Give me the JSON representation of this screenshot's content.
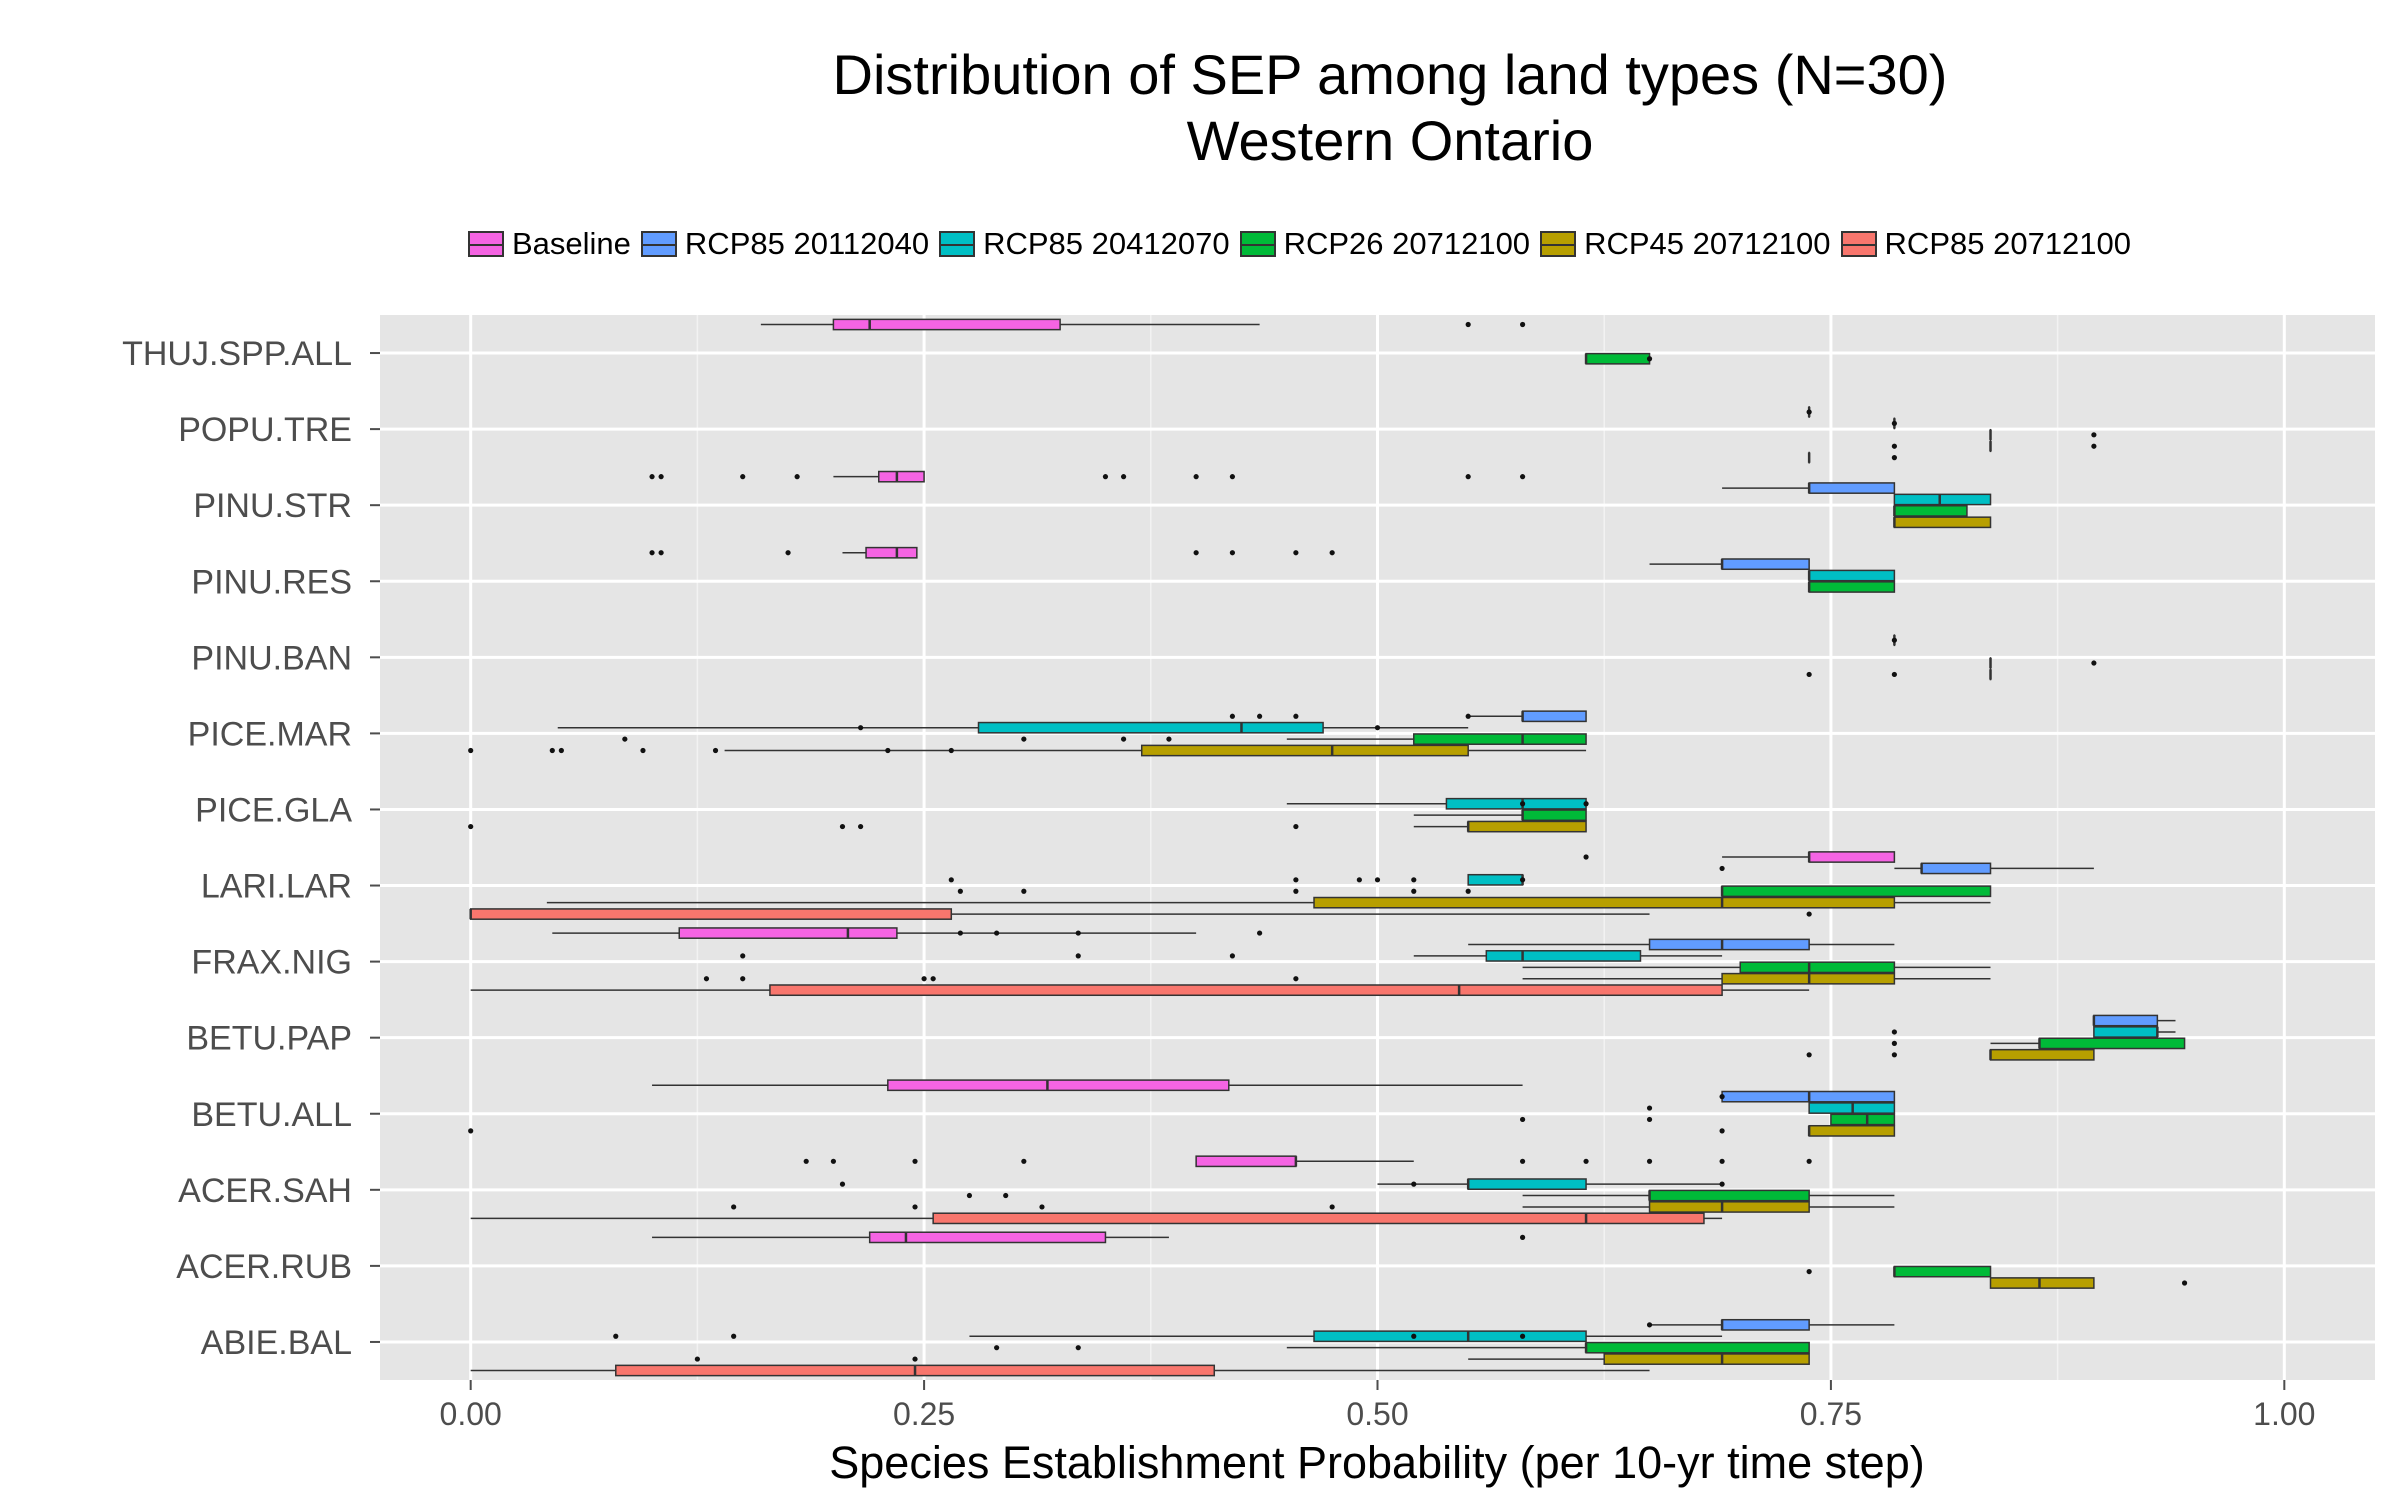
{
  "chart_data": {
    "type": "boxplot",
    "title": "Distribution of SEP among land types (N=30)",
    "subtitle": "Western Ontario",
    "xlabel": "Species Establishment Probability (per 10-yr time step)",
    "xlim": [
      -0.05,
      1.05
    ],
    "xticks": [
      0.0,
      0.25,
      0.5,
      0.75,
      1.0
    ],
    "xtick_labels": [
      "0.00",
      "0.25",
      "0.50",
      "0.75",
      "1.00"
    ],
    "grid": true,
    "legend_position": "top",
    "categories": [
      "THUJ.SPP.ALL",
      "POPU.TRE",
      "PINU.STR",
      "PINU.RES",
      "PINU.BAN",
      "PICE.MAR",
      "PICE.GLA",
      "LARI.LAR",
      "FRAX.NIG",
      "BETU.PAP",
      "BETU.ALL",
      "ACER.SAH",
      "ACER.RUB",
      "ABIE.BAL"
    ],
    "series": [
      {
        "name": "Baseline",
        "color": "#F564E3"
      },
      {
        "name": "RCP85 20112040",
        "color": "#619CFF"
      },
      {
        "name": "RCP85 20412070",
        "color": "#00BFC4"
      },
      {
        "name": "RCP26 20712100",
        "color": "#00BA38"
      },
      {
        "name": "RCP45 20712100",
        "color": "#B79F00"
      },
      {
        "name": "RCP85 20712100",
        "color": "#F8766D"
      }
    ],
    "boxes": [
      {
        "category": "THUJ.SPP.ALL",
        "series": 0,
        "whisker_low": 0.16,
        "q1": 0.2,
        "median": 0.22,
        "q3": 0.325,
        "whisker_high": 0.435,
        "outliers": [
          0.55,
          0.58
        ]
      },
      {
        "category": "THUJ.SPP.ALL",
        "series": 3,
        "whisker_low": 0.615,
        "q1": 0.615,
        "median": 0.615,
        "q3": 0.65,
        "whisker_high": 0.65,
        "outliers": [
          0.65
        ]
      },
      {
        "category": "POPU.TRE",
        "series": 1,
        "whisker_low": 0.738,
        "q1": 0.738,
        "median": 0.738,
        "q3": 0.738,
        "whisker_high": 0.738,
        "outliers": [
          0.738
        ]
      },
      {
        "category": "POPU.TRE",
        "series": 2,
        "whisker_low": 0.785,
        "q1": 0.785,
        "median": 0.785,
        "q3": 0.785,
        "whisker_high": 0.785,
        "outliers": [
          0.785
        ]
      },
      {
        "category": "POPU.TRE",
        "series": 3,
        "whisker_low": 0.838,
        "q1": 0.838,
        "median": 0.838,
        "q3": 0.838,
        "whisker_high": 0.838,
        "outliers": [
          0.895
        ]
      },
      {
        "category": "POPU.TRE",
        "series": 4,
        "whisker_low": 0.838,
        "q1": 0.838,
        "median": 0.838,
        "q3": 0.838,
        "whisker_high": 0.838,
        "outliers": [
          0.785,
          0.895
        ]
      },
      {
        "category": "POPU.TRE",
        "series": 5,
        "whisker_low": 0.738,
        "q1": 0.738,
        "median": 0.738,
        "q3": 0.738,
        "whisker_high": 0.738,
        "outliers": [
          0.785
        ]
      },
      {
        "category": "PINU.STR",
        "series": 0,
        "whisker_low": 0.2,
        "q1": 0.225,
        "median": 0.235,
        "q3": 0.25,
        "whisker_high": 0.25,
        "outliers": [
          0.1,
          0.105,
          0.15,
          0.18,
          0.35,
          0.36,
          0.4,
          0.42,
          0.55,
          0.58
        ]
      },
      {
        "category": "PINU.STR",
        "series": 1,
        "whisker_low": 0.69,
        "q1": 0.738,
        "median": 0.738,
        "q3": 0.785,
        "whisker_high": 0.785,
        "outliers": []
      },
      {
        "category": "PINU.STR",
        "series": 2,
        "whisker_low": 0.785,
        "q1": 0.785,
        "median": 0.81,
        "q3": 0.838,
        "whisker_high": 0.838,
        "outliers": []
      },
      {
        "category": "PINU.STR",
        "series": 3,
        "whisker_low": 0.785,
        "q1": 0.785,
        "median": 0.785,
        "q3": 0.825,
        "whisker_high": 0.825,
        "outliers": []
      },
      {
        "category": "PINU.STR",
        "series": 4,
        "whisker_low": 0.785,
        "q1": 0.785,
        "median": 0.785,
        "q3": 0.838,
        "whisker_high": 0.838,
        "outliers": []
      },
      {
        "category": "PINU.RES",
        "series": 0,
        "whisker_low": 0.205,
        "q1": 0.218,
        "median": 0.235,
        "q3": 0.246,
        "whisker_high": 0.246,
        "outliers": [
          0.1,
          0.105,
          0.175,
          0.4,
          0.42,
          0.455,
          0.475
        ]
      },
      {
        "category": "PINU.RES",
        "series": 1,
        "whisker_low": 0.65,
        "q1": 0.69,
        "median": 0.69,
        "q3": 0.738,
        "whisker_high": 0.738,
        "outliers": []
      },
      {
        "category": "PINU.RES",
        "series": 2,
        "whisker_low": 0.738,
        "q1": 0.738,
        "median": 0.738,
        "q3": 0.785,
        "whisker_high": 0.785,
        "outliers": []
      },
      {
        "category": "PINU.RES",
        "series": 3,
        "whisker_low": 0.738,
        "q1": 0.738,
        "median": 0.738,
        "q3": 0.785,
        "whisker_high": 0.785,
        "outliers": []
      },
      {
        "category": "PINU.BAN",
        "series": 1,
        "whisker_low": 0.785,
        "q1": 0.785,
        "median": 0.785,
        "q3": 0.785,
        "whisker_high": 0.785,
        "outliers": [
          0.785
        ]
      },
      {
        "category": "PINU.BAN",
        "series": 3,
        "whisker_low": 0.838,
        "q1": 0.838,
        "median": 0.838,
        "q3": 0.838,
        "whisker_high": 0.838,
        "outliers": [
          0.895
        ]
      },
      {
        "category": "PINU.BAN",
        "series": 4,
        "whisker_low": 0.838,
        "q1": 0.838,
        "median": 0.838,
        "q3": 0.838,
        "whisker_high": 0.838,
        "outliers": [
          0.738,
          0.785
        ]
      },
      {
        "category": "PICE.MAR",
        "series": 1,
        "whisker_low": 0.55,
        "q1": 0.58,
        "median": 0.58,
        "q3": 0.615,
        "whisker_high": 0.615,
        "outliers": [
          0.42,
          0.435,
          0.455,
          0.55
        ]
      },
      {
        "category": "PICE.MAR",
        "series": 2,
        "whisker_low": 0.048,
        "q1": 0.28,
        "median": 0.425,
        "q3": 0.47,
        "whisker_high": 0.55,
        "outliers": [
          0.215,
          0.5
        ]
      },
      {
        "category": "PICE.MAR",
        "series": 3,
        "whisker_low": 0.45,
        "q1": 0.52,
        "median": 0.58,
        "q3": 0.615,
        "whisker_high": 0.615,
        "outliers": [
          0.085,
          0.305,
          0.36,
          0.385
        ]
      },
      {
        "category": "PICE.MAR",
        "series": 4,
        "whisker_low": 0.14,
        "q1": 0.37,
        "median": 0.475,
        "q3": 0.55,
        "whisker_high": 0.615,
        "outliers": [
          0.0,
          0.045,
          0.05,
          0.095,
          0.135,
          0.23,
          0.265
        ]
      },
      {
        "category": "PICE.GLA",
        "series": 2,
        "whisker_low": 0.45,
        "q1": 0.538,
        "median": 0.58,
        "q3": 0.615,
        "whisker_high": 0.615,
        "outliers": [
          0.58,
          0.615
        ]
      },
      {
        "category": "PICE.GLA",
        "series": 3,
        "whisker_low": 0.52,
        "q1": 0.58,
        "median": 0.58,
        "q3": 0.615,
        "whisker_high": 0.615,
        "outliers": []
      },
      {
        "category": "PICE.GLA",
        "series": 4,
        "whisker_low": 0.52,
        "q1": 0.55,
        "median": 0.55,
        "q3": 0.615,
        "whisker_high": 0.615,
        "outliers": [
          0.0,
          0.205,
          0.215,
          0.455
        ]
      },
      {
        "category": "LARI.LAR",
        "series": 0,
        "whisker_low": 0.69,
        "q1": 0.738,
        "median": 0.738,
        "q3": 0.785,
        "whisker_high": 0.785,
        "outliers": [
          0.615
        ]
      },
      {
        "category": "LARI.LAR",
        "series": 1,
        "whisker_low": 0.785,
        "q1": 0.8,
        "median": 0.8,
        "q3": 0.838,
        "whisker_high": 0.895,
        "outliers": [
          0.69
        ]
      },
      {
        "category": "LARI.LAR",
        "series": 2,
        "whisker_low": 0.55,
        "q1": 0.55,
        "median": 0.58,
        "q3": 0.58,
        "whisker_high": 0.58,
        "outliers": [
          0.265,
          0.455,
          0.49,
          0.5,
          0.52,
          0.58
        ]
      },
      {
        "category": "LARI.LAR",
        "series": 3,
        "whisker_low": 0.69,
        "q1": 0.69,
        "median": 0.69,
        "q3": 0.838,
        "whisker_high": 0.838,
        "outliers": [
          0.27,
          0.305,
          0.455,
          0.52,
          0.55
        ]
      },
      {
        "category": "LARI.LAR",
        "series": 4,
        "whisker_low": 0.042,
        "q1": 0.465,
        "median": 0.69,
        "q3": 0.785,
        "whisker_high": 0.838,
        "outliers": []
      },
      {
        "category": "LARI.LAR",
        "series": 5,
        "whisker_low": 0.0,
        "q1": 0.0,
        "median": 0.0,
        "q3": 0.265,
        "whisker_high": 0.65,
        "outliers": [
          0.738
        ]
      },
      {
        "category": "FRAX.NIG",
        "series": 0,
        "whisker_low": 0.045,
        "q1": 0.115,
        "median": 0.208,
        "q3": 0.235,
        "whisker_high": 0.4,
        "outliers": [
          0.27,
          0.29,
          0.335,
          0.435
        ]
      },
      {
        "category": "FRAX.NIG",
        "series": 1,
        "whisker_low": 0.55,
        "q1": 0.65,
        "median": 0.69,
        "q3": 0.738,
        "whisker_high": 0.785,
        "outliers": []
      },
      {
        "category": "FRAX.NIG",
        "series": 2,
        "whisker_low": 0.52,
        "q1": 0.56,
        "median": 0.58,
        "q3": 0.645,
        "whisker_high": 0.69,
        "outliers": [
          0.15,
          0.335,
          0.42
        ]
      },
      {
        "category": "FRAX.NIG",
        "series": 3,
        "whisker_low": 0.58,
        "q1": 0.7,
        "median": 0.738,
        "q3": 0.785,
        "whisker_high": 0.838,
        "outliers": []
      },
      {
        "category": "FRAX.NIG",
        "series": 4,
        "whisker_low": 0.58,
        "q1": 0.69,
        "median": 0.738,
        "q3": 0.785,
        "whisker_high": 0.838,
        "outliers": [
          0.13,
          0.15,
          0.25,
          0.255,
          0.455
        ]
      },
      {
        "category": "FRAX.NIG",
        "series": 5,
        "whisker_low": 0.0,
        "q1": 0.165,
        "median": 0.545,
        "q3": 0.69,
        "whisker_high": 0.738,
        "outliers": []
      },
      {
        "category": "BETU.PAP",
        "series": 1,
        "whisker_low": 0.895,
        "q1": 0.895,
        "median": 0.895,
        "q3": 0.93,
        "whisker_high": 0.94,
        "outliers": []
      },
      {
        "category": "BETU.PAP",
        "series": 2,
        "whisker_low": 0.895,
        "q1": 0.895,
        "median": 0.93,
        "q3": 0.93,
        "whisker_high": 0.94,
        "outliers": [
          0.785
        ]
      },
      {
        "category": "BETU.PAP",
        "series": 3,
        "whisker_low": 0.838,
        "q1": 0.865,
        "median": 0.865,
        "q3": 0.945,
        "whisker_high": 0.945,
        "outliers": [
          0.785
        ]
      },
      {
        "category": "BETU.PAP",
        "series": 4,
        "whisker_low": 0.838,
        "q1": 0.838,
        "median": 0.838,
        "q3": 0.895,
        "whisker_high": 0.895,
        "outliers": [
          0.738,
          0.785
        ]
      },
      {
        "category": "BETU.ALL",
        "series": 0,
        "whisker_low": 0.1,
        "q1": 0.23,
        "median": 0.318,
        "q3": 0.418,
        "whisker_high": 0.58,
        "outliers": []
      },
      {
        "category": "BETU.ALL",
        "series": 1,
        "whisker_low": 0.69,
        "q1": 0.69,
        "median": 0.738,
        "q3": 0.785,
        "whisker_high": 0.785,
        "outliers": [
          0.69
        ]
      },
      {
        "category": "BETU.ALL",
        "series": 2,
        "whisker_low": 0.738,
        "q1": 0.738,
        "median": 0.762,
        "q3": 0.785,
        "whisker_high": 0.785,
        "outliers": [
          0.65
        ]
      },
      {
        "category": "BETU.ALL",
        "series": 3,
        "whisker_low": 0.75,
        "q1": 0.75,
        "median": 0.77,
        "q3": 0.785,
        "whisker_high": 0.785,
        "outliers": [
          0.58,
          0.65
        ]
      },
      {
        "category": "BETU.ALL",
        "series": 4,
        "whisker_low": 0.738,
        "q1": 0.738,
        "median": 0.738,
        "q3": 0.785,
        "whisker_high": 0.785,
        "outliers": [
          0.0,
          0.69
        ]
      },
      {
        "category": "ACER.SAH",
        "series": 0,
        "whisker_low": 0.4,
        "q1": 0.4,
        "median": 0.455,
        "q3": 0.455,
        "whisker_high": 0.52,
        "outliers": [
          0.185,
          0.2,
          0.245,
          0.305,
          0.58,
          0.615,
          0.65,
          0.69,
          0.738
        ]
      },
      {
        "category": "ACER.SAH",
        "series": 2,
        "whisker_low": 0.5,
        "q1": 0.55,
        "median": 0.55,
        "q3": 0.615,
        "whisker_high": 0.69,
        "outliers": [
          0.205,
          0.52,
          0.69
        ]
      },
      {
        "category": "ACER.SAH",
        "series": 3,
        "whisker_low": 0.58,
        "q1": 0.65,
        "median": 0.65,
        "q3": 0.738,
        "whisker_high": 0.785,
        "outliers": [
          0.275,
          0.295
        ]
      },
      {
        "category": "ACER.SAH",
        "series": 4,
        "whisker_low": 0.58,
        "q1": 0.65,
        "median": 0.69,
        "q3": 0.738,
        "whisker_high": 0.785,
        "outliers": [
          0.145,
          0.245,
          0.315,
          0.475
        ]
      },
      {
        "category": "ACER.SAH",
        "series": 5,
        "whisker_low": 0.0,
        "q1": 0.255,
        "median": 0.615,
        "q3": 0.68,
        "whisker_high": 0.69,
        "outliers": []
      },
      {
        "category": "ACER.RUB",
        "series": 0,
        "whisker_low": 0.1,
        "q1": 0.22,
        "median": 0.24,
        "q3": 0.35,
        "whisker_high": 0.385,
        "outliers": [
          0.58
        ]
      },
      {
        "category": "ACER.RUB",
        "series": 3,
        "whisker_low": 0.785,
        "q1": 0.785,
        "median": 0.785,
        "q3": 0.838,
        "whisker_high": 0.838,
        "outliers": [
          0.738
        ]
      },
      {
        "category": "ACER.RUB",
        "series": 4,
        "whisker_low": 0.838,
        "q1": 0.838,
        "median": 0.865,
        "q3": 0.895,
        "whisker_high": 0.895,
        "outliers": [
          0.945
        ]
      },
      {
        "category": "ABIE.BAL",
        "series": 1,
        "whisker_low": 0.65,
        "q1": 0.69,
        "median": 0.69,
        "q3": 0.738,
        "whisker_high": 0.785,
        "outliers": [
          0.65
        ]
      },
      {
        "category": "ABIE.BAL",
        "series": 2,
        "whisker_low": 0.275,
        "q1": 0.465,
        "median": 0.55,
        "q3": 0.615,
        "whisker_high": 0.69,
        "outliers": [
          0.08,
          0.145,
          0.52,
          0.58
        ]
      },
      {
        "category": "ABIE.BAL",
        "series": 3,
        "whisker_low": 0.45,
        "q1": 0.615,
        "median": 0.615,
        "q3": 0.738,
        "whisker_high": 0.738,
        "outliers": [
          0.29,
          0.335
        ]
      },
      {
        "category": "ABIE.BAL",
        "series": 4,
        "whisker_low": 0.55,
        "q1": 0.625,
        "median": 0.69,
        "q3": 0.738,
        "whisker_high": 0.738,
        "outliers": [
          0.125,
          0.245
        ]
      },
      {
        "category": "ABIE.BAL",
        "series": 5,
        "whisker_low": 0.0,
        "q1": 0.08,
        "median": 0.245,
        "q3": 0.41,
        "whisker_high": 0.65,
        "outliers": []
      }
    ]
  }
}
